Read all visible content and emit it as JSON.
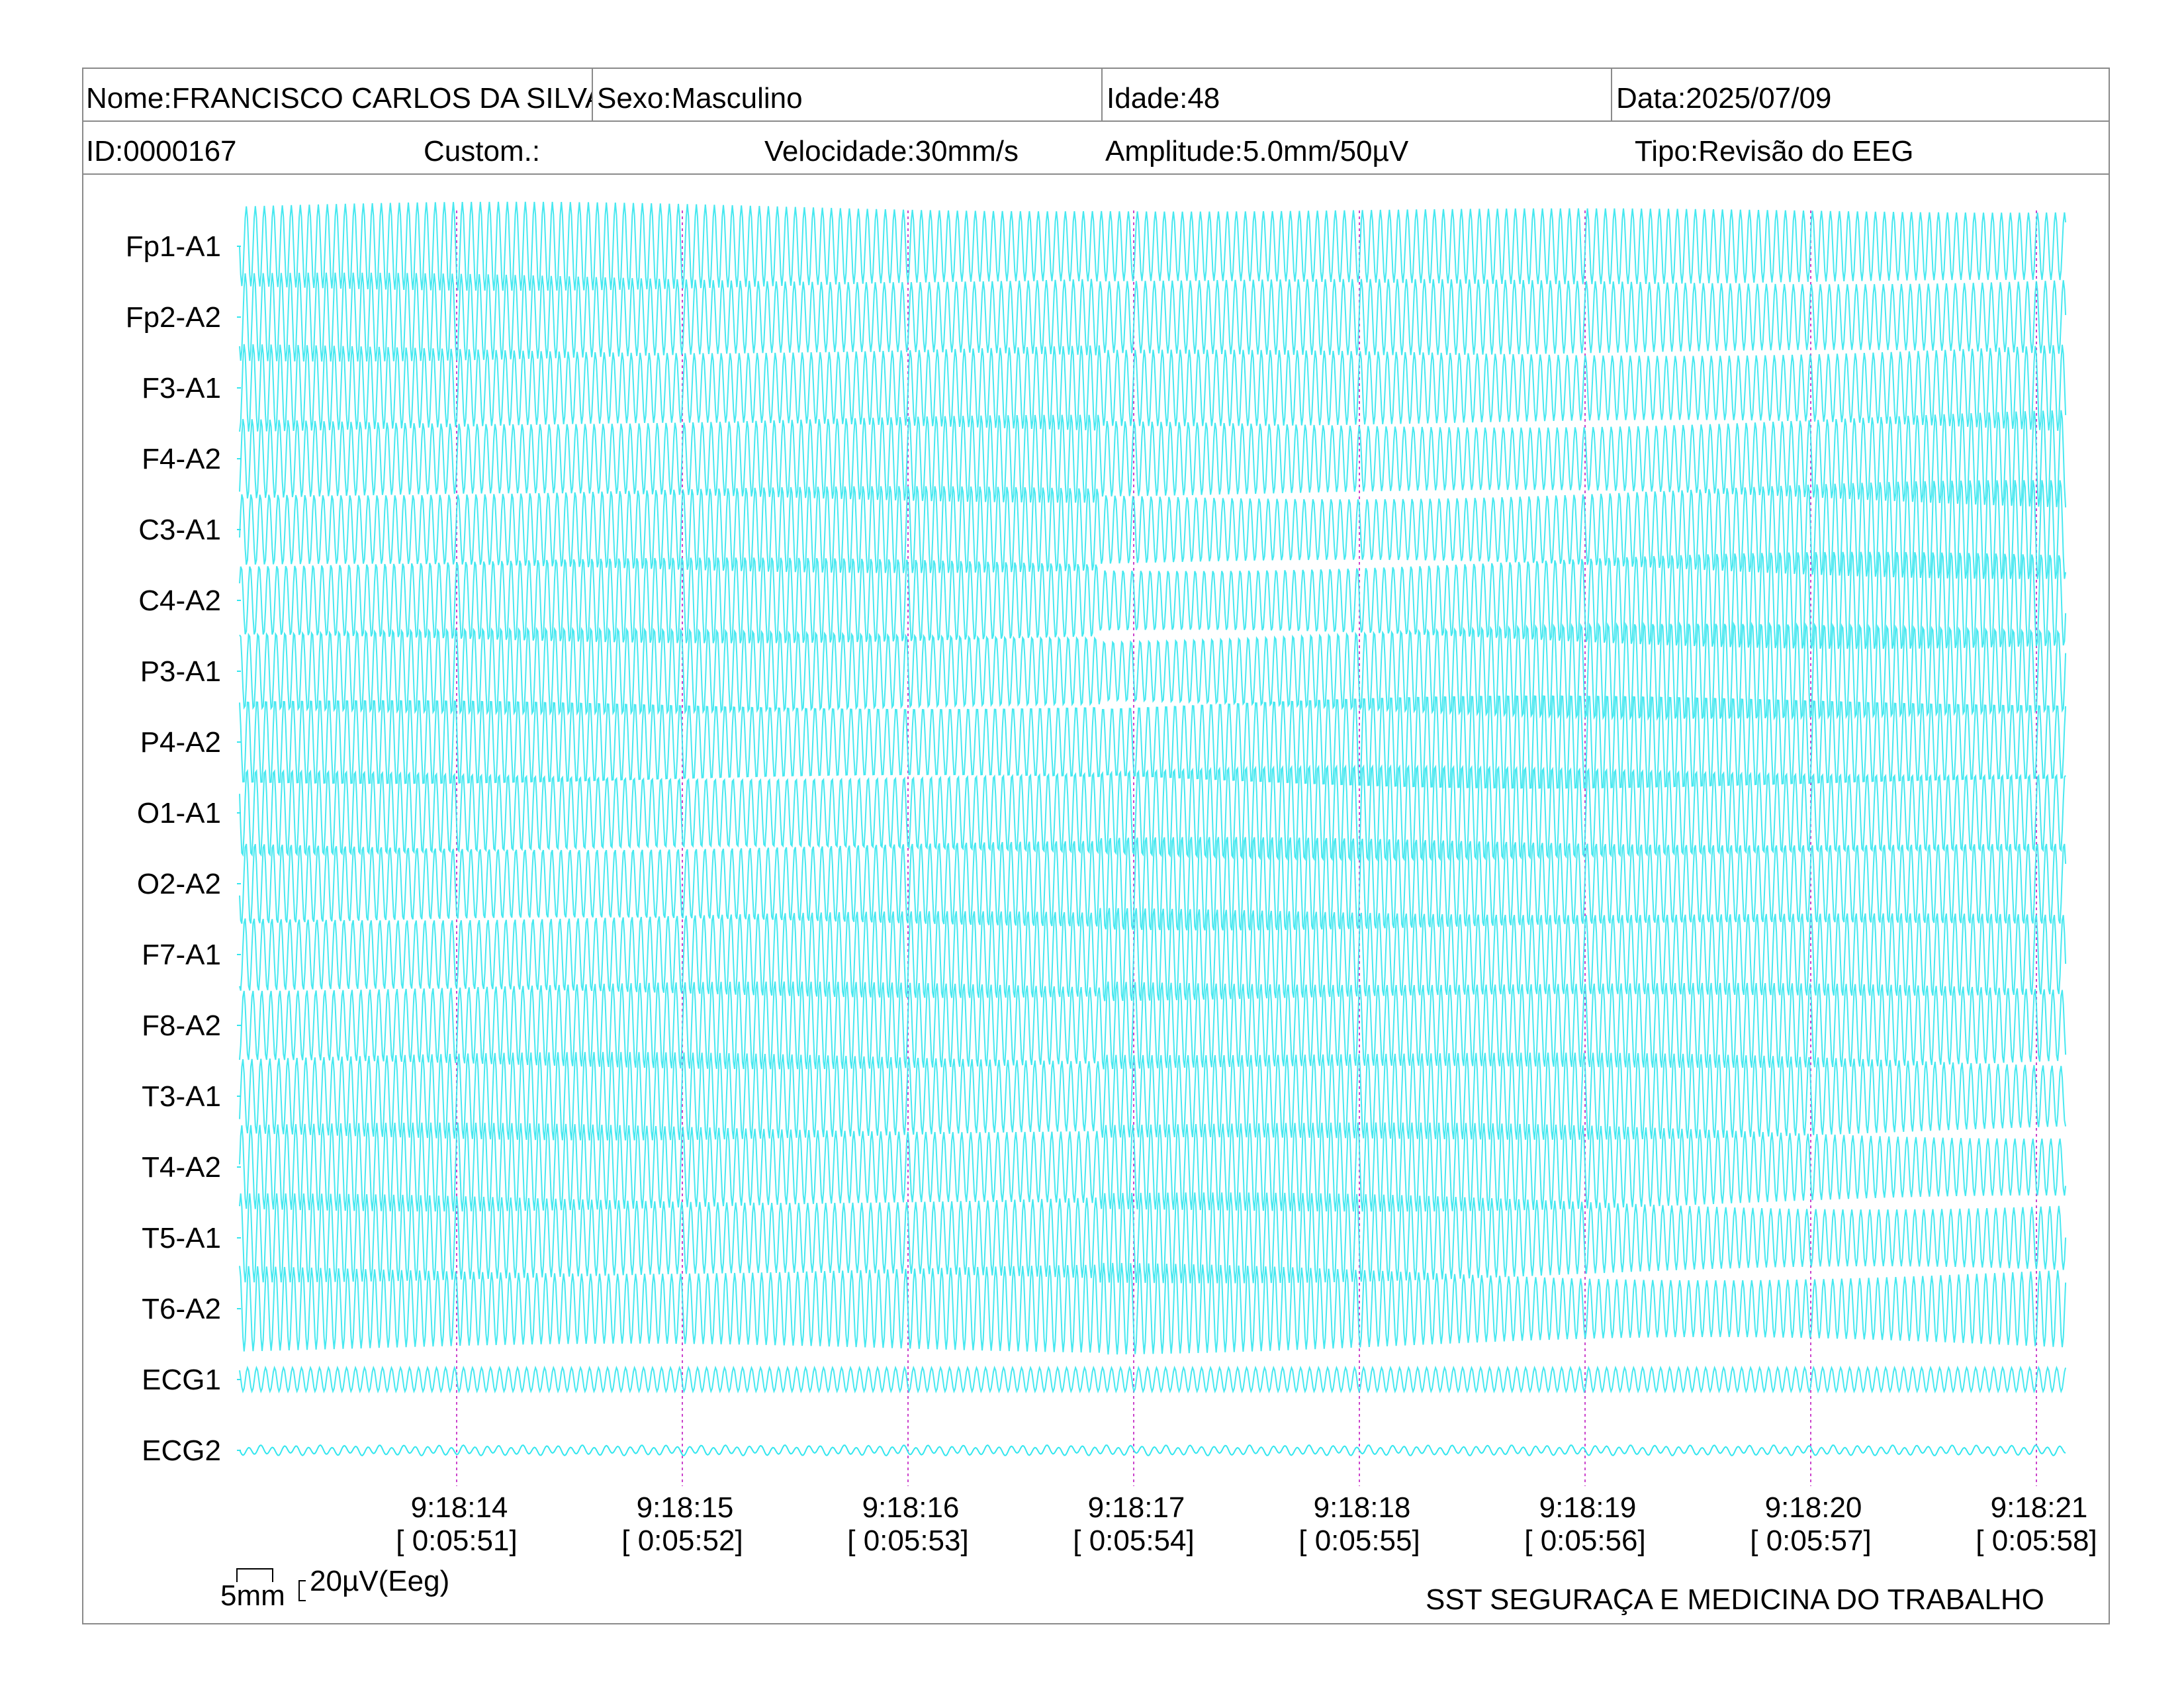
{
  "header": {
    "nome": "Nome:FRANCISCO CARLOS DA SILVA",
    "sexo": "Sexo:Masculino",
    "idade": "Idade:48",
    "data": "Data:2025/07/09",
    "id": "ID:0000167",
    "custom": "Custom.:",
    "velocidade": "Velocidade:30mm/s",
    "amplitude": "Amplitude:5.0mm/50µV",
    "tipo": "Tipo:Revisão do EEG"
  },
  "footer": {
    "scale_x": "5mm",
    "scale_y": "20µV(Eeg)",
    "company": "SST SEGURAÇA E MEDICINA DO TRABALHO"
  },
  "colors": {
    "trace": "#33e6ee",
    "marker": "#cc44cc",
    "border": "#8a8a8a"
  },
  "chart_data": {
    "type": "line",
    "channels": [
      "Fp1-A1",
      "Fp2-A2",
      "F3-A1",
      "F4-A2",
      "C3-A1",
      "C4-A2",
      "P3-A1",
      "P4-A2",
      "O1-A1",
      "O2-A2",
      "F7-A1",
      "F8-A2",
      "T3-A1",
      "T4-A2",
      "T5-A1",
      "T6-A2",
      "ECG1",
      "ECG2"
    ],
    "time_marks": [
      {
        "clock": "9:18:14",
        "elapsed": "[ 0:05:51]"
      },
      {
        "clock": "9:18:15",
        "elapsed": "[ 0:05:52]"
      },
      {
        "clock": "9:18:16",
        "elapsed": "[ 0:05:53]"
      },
      {
        "clock": "9:18:17",
        "elapsed": "[ 0:05:54]"
      },
      {
        "clock": "9:18:18",
        "elapsed": "[ 0:05:55]"
      },
      {
        "clock": "9:18:19",
        "elapsed": "[ 0:05:56]"
      },
      {
        "clock": "9:18:20",
        "elapsed": "[ 0:05:57]"
      },
      {
        "clock": "9:18:21",
        "elapsed": "[ 0:05:58]"
      }
    ]
  }
}
